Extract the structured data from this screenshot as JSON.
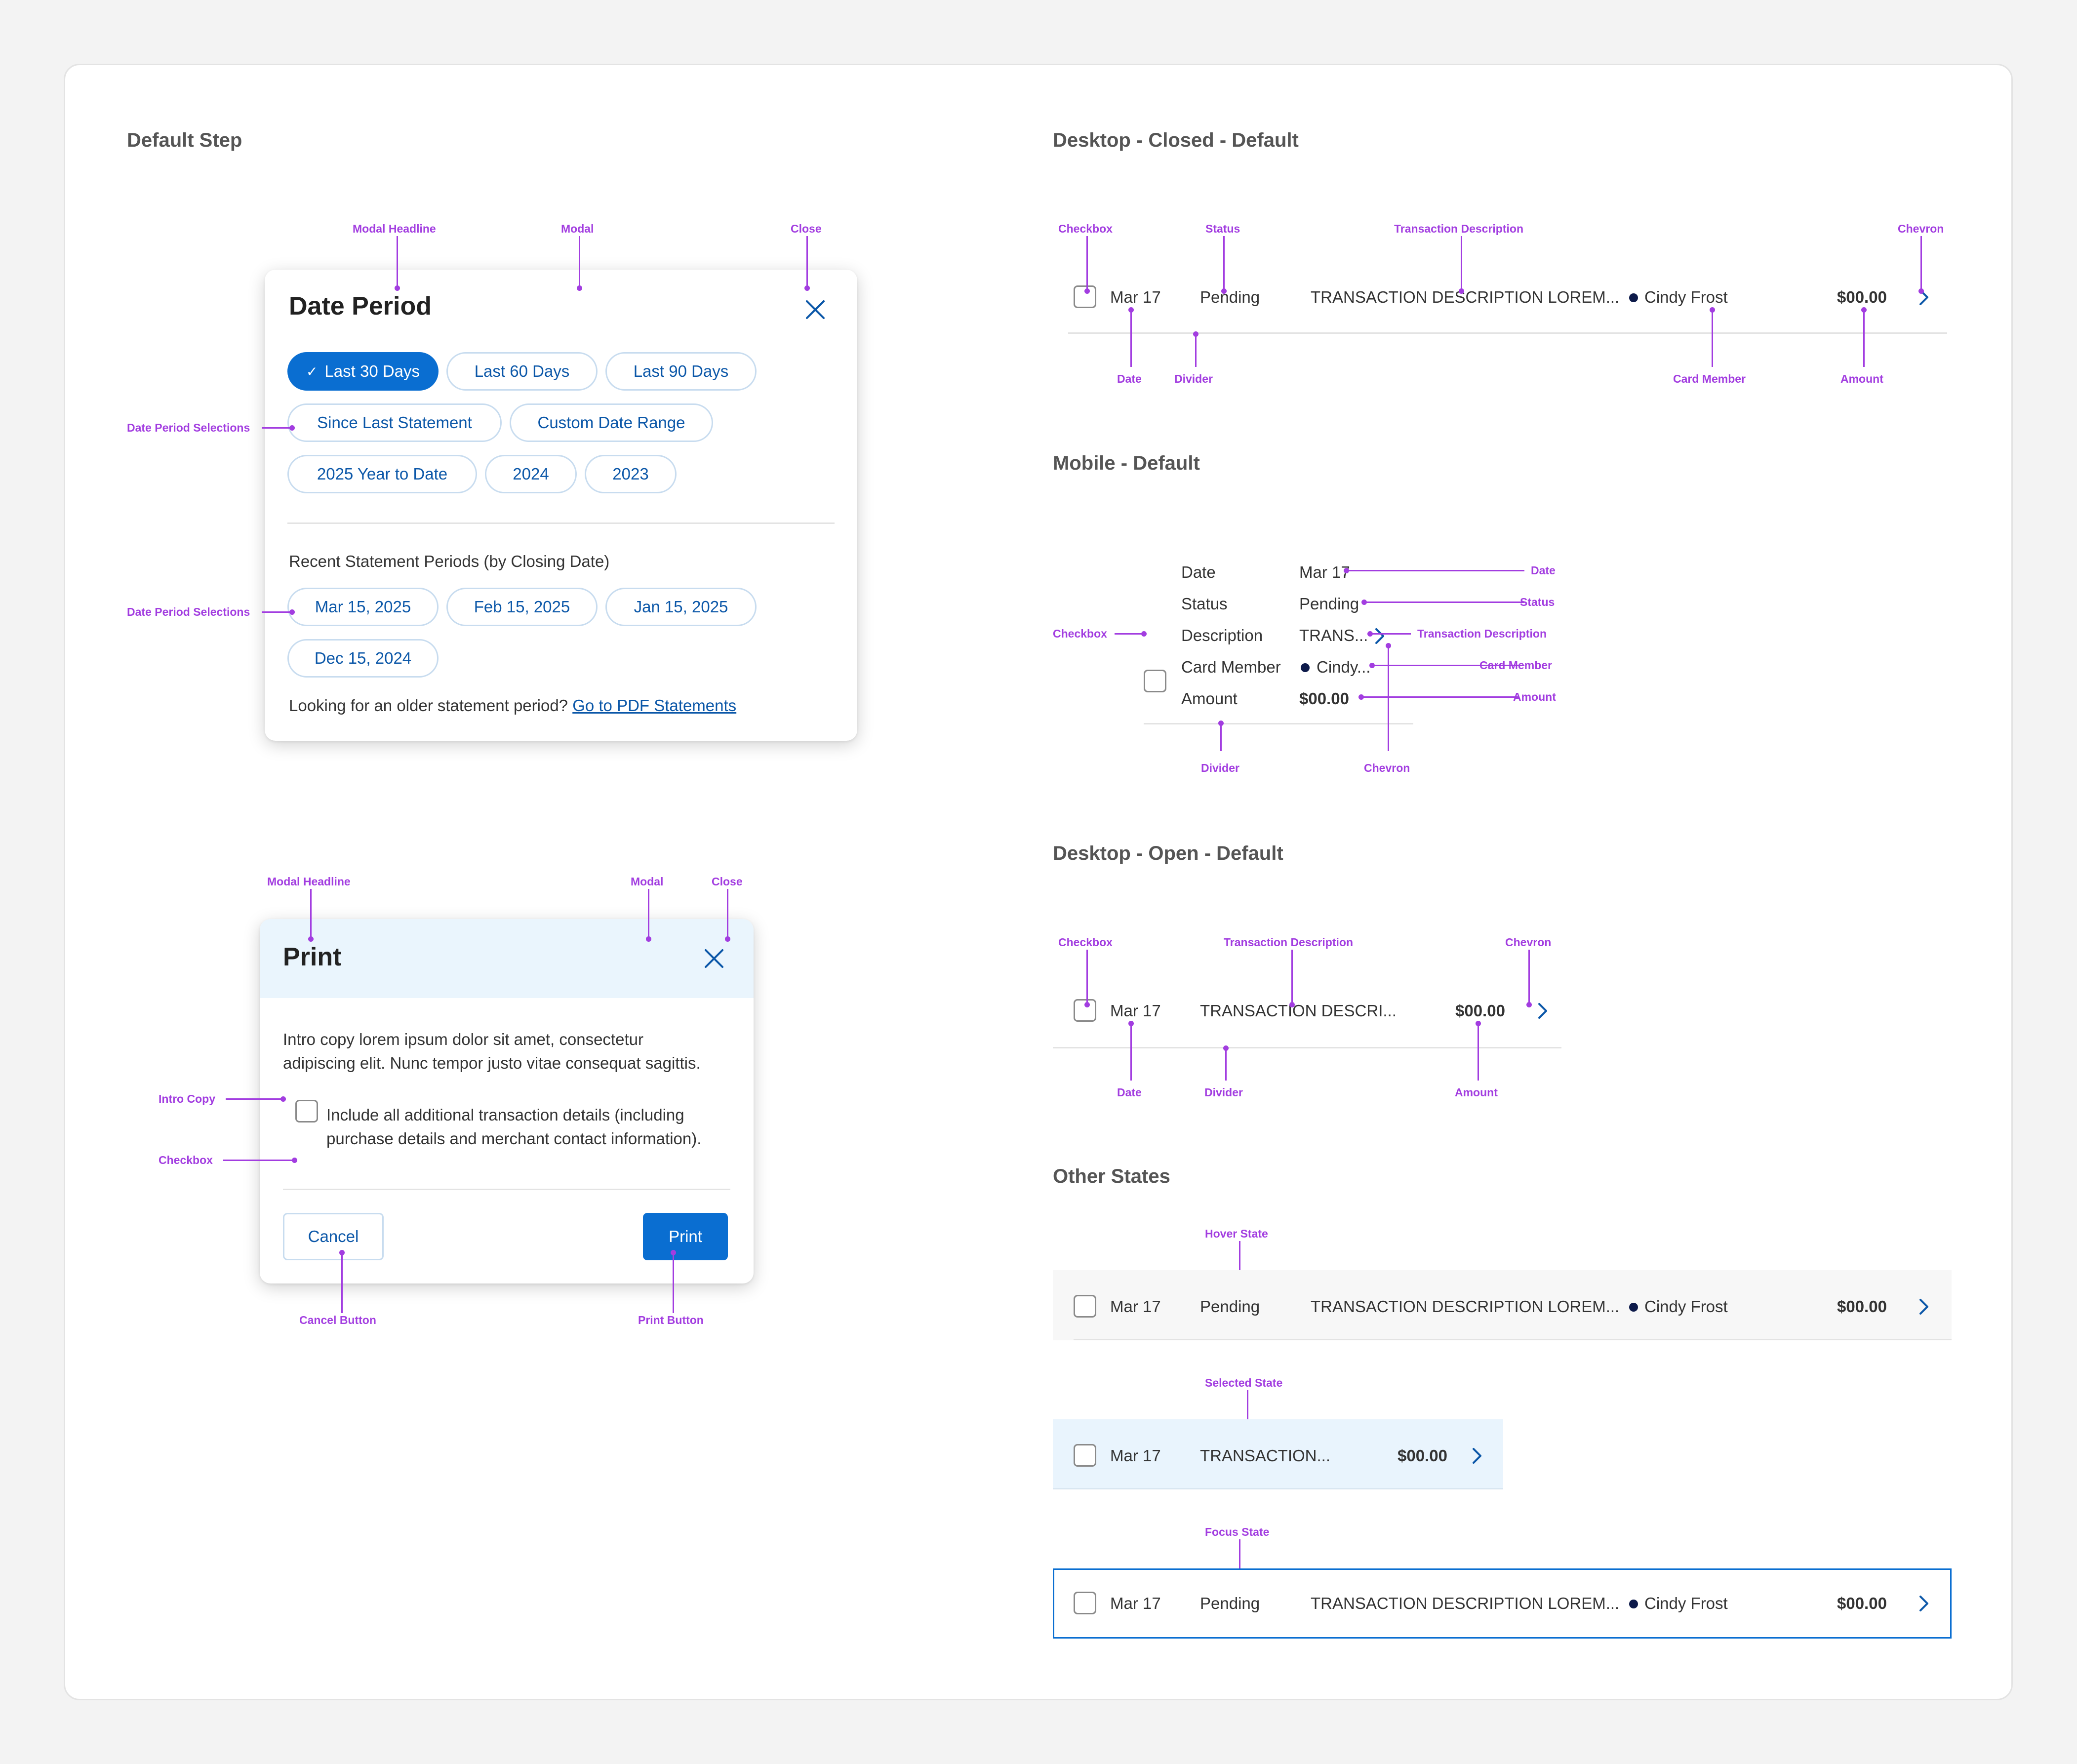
{
  "sections": {
    "default_step": "Default Step",
    "desktop_closed": "Desktop - Closed - Default",
    "mobile_default": "Mobile - Default",
    "desktop_open": "Desktop - Open - Default",
    "other_states": "Other States"
  },
  "date_modal": {
    "title": "Date Period",
    "chips_row1": [
      "Last 30 Days",
      "Last 60 Days",
      "Last 90 Days"
    ],
    "chips_row2": [
      "Since Last Statement",
      "Custom Date Range"
    ],
    "chips_row3": [
      "2025 Year to Date",
      "2024",
      "2023"
    ],
    "recent_heading": "Recent Statement Periods (by Closing Date)",
    "statement_row1": [
      "Mar 15, 2025",
      "Feb 15, 2025",
      "Jan 15, 2025"
    ],
    "statement_row2": [
      "Dec 15, 2024"
    ],
    "footer_text": "Looking for an older statement period?",
    "footer_link": "Go to PDF Statements",
    "selected_chip": "Last 30 Days"
  },
  "print_modal": {
    "title": "Print",
    "intro_line1": "Intro copy lorem ipsum dolor sit amet, consectetur",
    "intro_line2": "adipiscing elit. Nunc tempor justo vitae consequat sagittis.",
    "checkbox_line1": "Include all additional transaction details (including",
    "checkbox_line2": "purchase details and merchant contact information).",
    "cancel": "Cancel",
    "print": "Print"
  },
  "transaction": {
    "date": "Mar 17",
    "status": "Pending",
    "description": "TRANSACTION DESCRIPTION LOREM...",
    "description_open": "TRANSACTION DESCRI...",
    "description_short": "TRANSACTION...",
    "member": "Cindy Frost",
    "amount": "$00.00"
  },
  "mobile": {
    "labels": [
      "Date",
      "Status",
      "Description",
      "Card Member",
      "Amount"
    ],
    "values": [
      "Mar 17",
      "Pending",
      "TRANS...",
      "Cindy...",
      "$00.00"
    ]
  },
  "annotations": {
    "modal_headline": "Modal Headline",
    "modal": "Modal",
    "close": "Close",
    "date_period_selections": "Date Period Selections",
    "intro_copy": "Intro Copy",
    "checkbox": "Checkbox",
    "cancel_button": "Cancel Button",
    "print_button": "Print Button",
    "status": "Status",
    "transaction_description": "Transaction Description",
    "chevron": "Chevron",
    "date": "Date",
    "divider": "Divider",
    "card_member": "Card Member",
    "amount": "Amount",
    "hover_state": "Hover State",
    "selected_state": "Selected State",
    "focus_state": "Focus State"
  },
  "colors": {
    "accent": "#0a6ed1",
    "annotation": "#a23de0",
    "selected_bg": "#e9f4fd",
    "header_bg": "#eaf5fd"
  }
}
